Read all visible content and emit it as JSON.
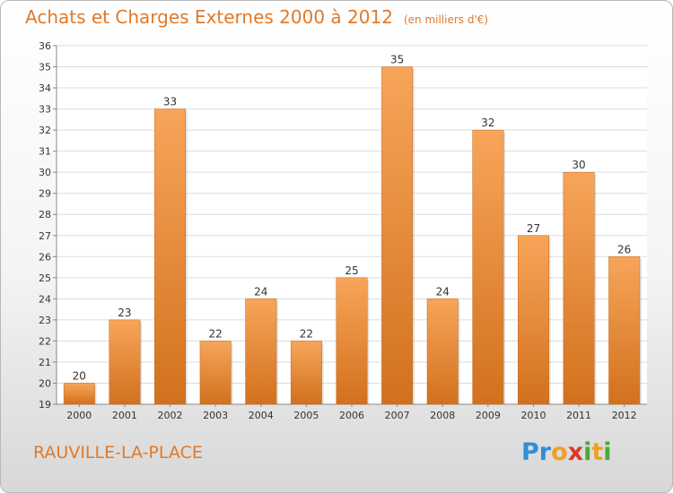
{
  "chart_data": {
    "type": "bar",
    "title": "Achats et Charges Externes 2000 à 2012",
    "subtitle": "(en milliers d'€)",
    "categories": [
      "2000",
      "2001",
      "2002",
      "2003",
      "2004",
      "2005",
      "2006",
      "2007",
      "2008",
      "2009",
      "2010",
      "2011",
      "2012"
    ],
    "values": [
      20,
      23,
      33,
      22,
      24,
      22,
      25,
      35,
      24,
      32,
      27,
      30,
      26
    ],
    "ylim": [
      19,
      36
    ],
    "yticks": [
      19,
      20,
      21,
      22,
      23,
      24,
      25,
      26,
      27,
      28,
      29,
      30,
      31,
      32,
      33,
      34,
      35,
      36
    ],
    "grid": true,
    "bar_color_top": "#f7a55a",
    "bar_color_bottom": "#d2711d"
  },
  "footer": {
    "commune": "RAUVILLE-LA-PLACE",
    "logo_letters": [
      "P",
      "r",
      "o",
      "x",
      "i",
      "t",
      "i"
    ],
    "logo_colors": [
      "#2f8fd6",
      "#2f8fd6",
      "#f0a020",
      "#d83a2a",
      "#4aa83a",
      "#f0a020",
      "#4aa83a"
    ]
  }
}
